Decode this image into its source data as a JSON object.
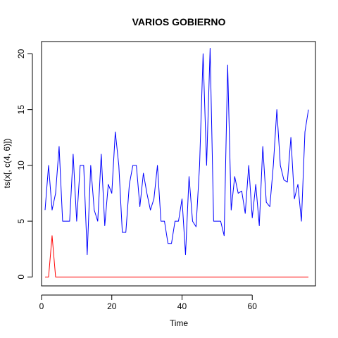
{
  "chart_data": {
    "type": "line",
    "title": "VARIOS GOBIERNO",
    "xlabel": "Time",
    "ylabel": "ts(x[, c(4, 6)])",
    "xlim": [
      0,
      78
    ],
    "ylim": [
      -0.8,
      21.1
    ],
    "xticks": [
      0,
      20,
      40,
      60
    ],
    "yticks": [
      0,
      5,
      10,
      15,
      20
    ],
    "x": [
      1,
      2,
      3,
      4,
      5,
      6,
      7,
      8,
      9,
      10,
      11,
      12,
      13,
      14,
      15,
      16,
      17,
      18,
      19,
      20,
      21,
      22,
      23,
      24,
      25,
      26,
      27,
      28,
      29,
      30,
      31,
      32,
      33,
      34,
      35,
      36,
      37,
      38,
      39,
      40,
      41,
      42,
      43,
      44,
      45,
      46,
      47,
      48,
      49,
      50,
      51,
      52,
      53,
      54,
      55,
      56,
      57,
      58,
      59,
      60,
      61,
      62,
      63,
      64,
      65,
      66,
      67,
      68,
      69,
      70,
      71,
      72,
      73,
      74,
      75,
      76
    ],
    "series": [
      {
        "color": "#0000ff",
        "values": [
          6.0,
          10.0,
          6.0,
          7.5,
          11.7,
          5.0,
          5.0,
          5.0,
          11.0,
          5.0,
          10.0,
          10.0,
          2.0,
          10.0,
          6.0,
          5.0,
          11.0,
          4.6,
          8.3,
          7.5,
          13.0,
          10.0,
          4.0,
          4.0,
          8.3,
          10.0,
          10.0,
          6.3,
          9.3,
          7.5,
          6.0,
          7.0,
          10.0,
          5.0,
          5.0,
          3.0,
          3.0,
          5.0,
          5.0,
          7.0,
          2.0,
          9.0,
          5.0,
          4.5,
          10.0,
          20.0,
          10.0,
          20.5,
          5.0,
          5.0,
          5.0,
          3.7,
          19.0,
          6.0,
          9.0,
          7.5,
          7.7,
          5.7,
          10.0,
          5.3,
          8.3,
          4.6,
          11.7,
          6.7,
          6.3,
          10.0,
          15.0,
          10.0,
          8.7,
          8.5,
          12.5,
          7.0,
          8.3,
          5.0,
          13.0,
          15.0
        ]
      },
      {
        "color": "#ff0000",
        "values": [
          0,
          0,
          3.7,
          0,
          0,
          0,
          0,
          0,
          0,
          0,
          0,
          0,
          0,
          0,
          0,
          0,
          0,
          0,
          0,
          0,
          0,
          0,
          0,
          0,
          0,
          0,
          0,
          0,
          0,
          0,
          0,
          0,
          0,
          0,
          0,
          0,
          0,
          0,
          0,
          0,
          0,
          0,
          0,
          0,
          0,
          0,
          0,
          0,
          0,
          0,
          0,
          0,
          0,
          0,
          0,
          0,
          0,
          0,
          0,
          0,
          0,
          0,
          0,
          0,
          0,
          0,
          0,
          0,
          0,
          0,
          0,
          0,
          0,
          0,
          0,
          0
        ]
      }
    ]
  }
}
